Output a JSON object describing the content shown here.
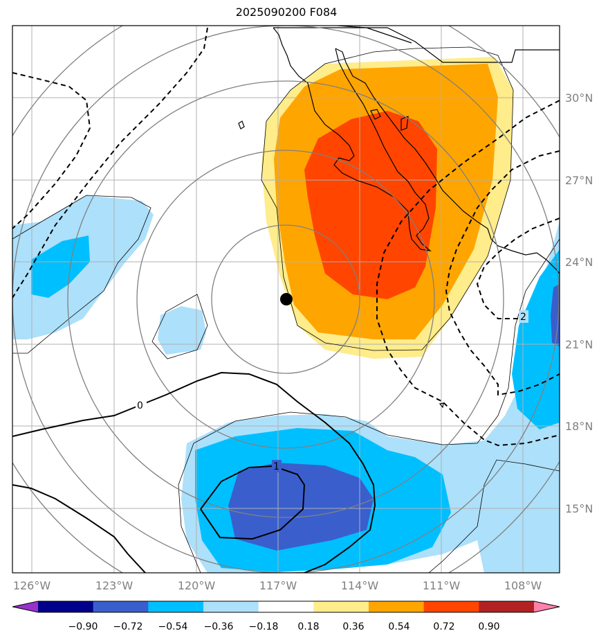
{
  "title": "2025090200 F084",
  "map": {
    "lon_labels": [
      "126°W",
      "123°W",
      "120°W",
      "117°W",
      "114°W",
      "111°W",
      "108°W"
    ],
    "lat_labels": [
      "30°N",
      "27°N",
      "24°N",
      "21°N",
      "18°N",
      "15°N"
    ],
    "contour_labels": [
      "0",
      "1",
      "2"
    ],
    "storm_center": {
      "lon": -116.8,
      "lat": 22.6
    }
  },
  "colorbar": {
    "ticks": [
      "−0.90",
      "−0.72",
      "−0.54",
      "−0.36",
      "−0.18",
      "0.18",
      "0.36",
      "0.54",
      "0.72",
      "0.90"
    ],
    "colors": [
      "#9932CC",
      "#00008B",
      "#3A5FCD",
      "#00BFFF",
      "#ADE0FA",
      "#FFFFFF",
      "#FFEC8B",
      "#FFA500",
      "#FF4500",
      "#B22222",
      "#FF82AB"
    ]
  }
}
